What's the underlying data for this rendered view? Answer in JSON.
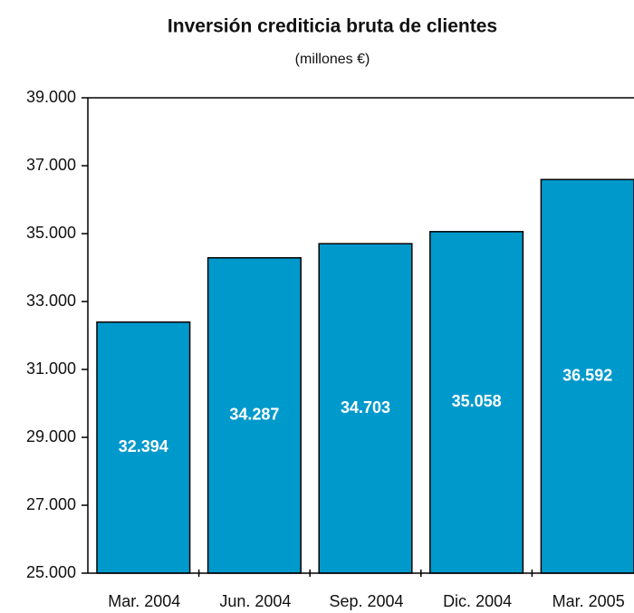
{
  "chart_data": {
    "type": "bar",
    "title": "Inversión crediticia bruta de clientes",
    "subtitle": "(millones €)",
    "categories": [
      "Mar. 2004",
      "Jun. 2004",
      "Sep. 2004",
      "Dic. 2004",
      "Mar. 2005"
    ],
    "values": [
      32394,
      34287,
      34703,
      35058,
      36592
    ],
    "value_labels": [
      "32.394",
      "34.287",
      "34.703",
      "35.058",
      "36.592"
    ],
    "color": "#0099cc",
    "ylim": [
      25000,
      39000
    ],
    "yticks": [
      {
        "value": 25000,
        "label": "25.000"
      },
      {
        "value": 27000,
        "label": "27.000"
      },
      {
        "value": 29000,
        "label": "29.000"
      },
      {
        "value": 31000,
        "label": "31.000"
      },
      {
        "value": 33000,
        "label": "33.000"
      },
      {
        "value": 35000,
        "label": "35.000"
      },
      {
        "value": 37000,
        "label": "37.000"
      },
      {
        "value": 39000,
        "label": "39.000"
      }
    ]
  }
}
